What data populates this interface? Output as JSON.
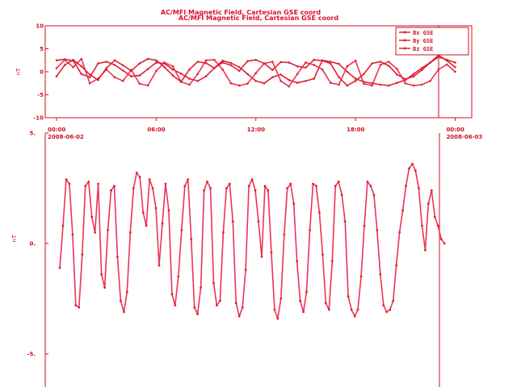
{
  "titles": {
    "overlay": "AC/MFI  Magnetic Field, Cartesian GSE coord",
    "main": "AC/MFI  Magnetic Field, Cartesian GSE coord"
  },
  "colors": {
    "axis": "#cc1122",
    "series": "#dd2233",
    "series_alt": "#ee3355",
    "text": "#cc1122"
  },
  "chart_data": [
    {
      "type": "line",
      "title": "AC/MFI  Magnetic Field, Cartesian GSE coord",
      "ylabel": "nT",
      "ylim": [
        -10,
        10
      ],
      "y_ticks": [
        "10",
        "5",
        "0",
        "-5",
        "-10"
      ],
      "xlim_hours": [
        0,
        25
      ],
      "x_ticks": [
        {
          "hour": 0,
          "label": "00:00",
          "date": "2008-06-02"
        },
        {
          "hour": 6,
          "label": "06:00",
          "date": ""
        },
        {
          "hour": 12,
          "label": "12:00",
          "date": ""
        },
        {
          "hour": 18,
          "label": "18:00",
          "date": ""
        },
        {
          "hour": 24,
          "label": "00:00",
          "date": "2008-06-03"
        }
      ],
      "legend": {
        "placement": "top-right",
        "entries": [
          "Bx GSE",
          "By GSE",
          "Bz GSE"
        ]
      },
      "series": [
        {
          "name": "Bx GSE",
          "x": [
            0.0,
            0.5,
            1.0,
            1.5,
            2.0,
            2.5,
            3.0,
            3.5,
            4.0,
            4.5,
            5.0,
            5.5,
            6.0,
            6.5,
            7.0,
            7.5,
            8.0,
            8.5,
            9.0,
            9.5,
            10.0,
            10.5,
            11.0,
            11.5,
            12.0,
            12.5,
            13.0,
            13.5,
            14.0,
            14.5,
            15.0,
            15.5,
            16.0,
            16.5,
            17.0,
            17.5,
            18.0,
            18.5,
            19.0,
            19.5,
            20.0,
            20.5,
            21.0,
            21.5,
            22.0,
            22.5,
            23.0,
            23.5,
            24.0
          ],
          "values": [
            2.5,
            2.7,
            2.4,
            -0.5,
            -1.2,
            1.8,
            2.2,
            1.5,
            0.3,
            -1.0,
            -0.8,
            0.6,
            2.0,
            1.8,
            0.5,
            -0.4,
            -1.5,
            -2.0,
            -1.0,
            0.8,
            2.4,
            1.9,
            1.0,
            -0.5,
            -2.0,
            -2.5,
            -1.2,
            -0.6,
            -1.8,
            -2.4,
            -2.0,
            -1.5,
            2.5,
            2.2,
            1.7,
            0.0,
            -1.5,
            -2.2,
            -2.5,
            -2.8,
            -3.0,
            -2.4,
            -1.8,
            -0.5,
            0.8,
            2.0,
            3.2,
            2.6,
            2.0
          ]
        },
        {
          "name": "By GSE",
          "x": [
            0.0,
            0.5,
            1.0,
            1.5,
            2.0,
            2.5,
            3.0,
            3.5,
            4.0,
            4.5,
            5.0,
            5.5,
            6.0,
            6.5,
            7.0,
            7.5,
            8.0,
            8.5,
            9.0,
            9.5,
            10.0,
            10.5,
            11.0,
            11.5,
            12.0,
            12.5,
            13.0,
            13.5,
            14.0,
            14.5,
            15.0,
            15.5,
            16.0,
            16.5,
            17.0,
            17.5,
            18.0,
            18.5,
            19.0,
            19.5,
            20.0,
            20.5,
            21.0,
            21.5,
            22.0,
            22.5,
            23.0,
            23.5,
            24.0
          ],
          "values": [
            0.8,
            2.6,
            1.0,
            2.8,
            -2.5,
            -1.5,
            0.5,
            -1.2,
            -2.0,
            0.4,
            -2.6,
            -3.0,
            0.2,
            2.0,
            1.2,
            -2.2,
            -2.8,
            -0.5,
            2.5,
            2.6,
            0.5,
            -2.5,
            -3.0,
            -2.6,
            -0.3,
            1.8,
            2.2,
            -2.0,
            -3.2,
            -0.5,
            2.0,
            1.5,
            0.5,
            -2.4,
            -2.8,
            1.2,
            2.4,
            -2.6,
            -3.0,
            1.5,
            2.2,
            0.6,
            -2.5,
            -3.0,
            -2.8,
            -2.0,
            0.5,
            1.6,
            0.0
          ]
        },
        {
          "name": "Bz GSE",
          "x": [
            0.0,
            0.5,
            1.0,
            1.5,
            2.0,
            2.5,
            3.0,
            3.5,
            4.0,
            4.5,
            5.0,
            5.5,
            6.0,
            6.5,
            7.0,
            7.5,
            8.0,
            8.5,
            9.0,
            9.5,
            10.0,
            10.5,
            11.0,
            11.5,
            12.0,
            12.5,
            13.0,
            13.5,
            14.0,
            14.5,
            15.0,
            15.5,
            16.0,
            16.5,
            17.0,
            17.5,
            18.0,
            18.5,
            19.0,
            19.5,
            20.0,
            20.5,
            21.0,
            21.5,
            22.0,
            22.5,
            23.0,
            23.5,
            24.0
          ],
          "values": [
            -1.0,
            1.5,
            2.6,
            1.2,
            -0.6,
            -1.8,
            0.8,
            2.5,
            1.4,
            0.2,
            1.8,
            2.8,
            2.5,
            1.0,
            -0.8,
            -2.2,
            0.5,
            2.2,
            1.9,
            0.8,
            2.0,
            1.4,
            0.2,
            2.3,
            2.6,
            1.8,
            0.4,
            2.1,
            2.0,
            1.2,
            0.9,
            2.6,
            2.4,
            1.8,
            -1.2,
            -3.0,
            -2.0,
            -0.5,
            1.8,
            2.2,
            1.3,
            -0.6,
            -1.6,
            -1.0,
            0.4,
            2.0,
            3.6,
            2.4,
            1.0
          ]
        }
      ]
    },
    {
      "type": "line",
      "title": "",
      "ylabel": "nT",
      "ylim": [
        -6.5,
        5
      ],
      "y_ticks": [
        "5.",
        "0.",
        "-5."
      ],
      "xlim_hours": [
        0,
        25
      ],
      "series": [
        {
          "name": "",
          "x": [
            0.0,
            0.2,
            0.4,
            0.6,
            0.8,
            1.0,
            1.2,
            1.4,
            1.6,
            1.8,
            2.0,
            2.2,
            2.4,
            2.6,
            2.8,
            3.0,
            3.2,
            3.4,
            3.6,
            3.8,
            4.0,
            4.2,
            4.4,
            4.6,
            4.8,
            5.0,
            5.2,
            5.4,
            5.6,
            5.8,
            6.0,
            6.2,
            6.4,
            6.6,
            6.8,
            7.0,
            7.2,
            7.4,
            7.6,
            7.8,
            8.0,
            8.2,
            8.4,
            8.6,
            8.8,
            9.0,
            9.2,
            9.4,
            9.6,
            9.8,
            10.0,
            10.2,
            10.4,
            10.6,
            10.8,
            11.0,
            11.2,
            11.4,
            11.6,
            11.8,
            12.0,
            12.2,
            12.4,
            12.6,
            12.8,
            13.0,
            13.2,
            13.4,
            13.6,
            13.8,
            14.0,
            14.2,
            14.4,
            14.6,
            14.8,
            15.0,
            15.2,
            15.4,
            15.6,
            15.8,
            16.0,
            16.2,
            16.4,
            16.6,
            16.8,
            17.0,
            17.2,
            17.4,
            17.6,
            17.8,
            18.0,
            18.2,
            18.4,
            18.6,
            18.8,
            19.0,
            19.2,
            19.4,
            19.6,
            19.8,
            20.0,
            20.2,
            20.4,
            20.6,
            20.8,
            21.0,
            21.2,
            21.4,
            21.6,
            21.8,
            22.0,
            22.2,
            22.4,
            22.6,
            22.8,
            23.0,
            23.2,
            23.4,
            23.6,
            23.8,
            24.0
          ],
          "values": [
            -1.1,
            0.8,
            2.9,
            2.7,
            0.4,
            -2.8,
            -2.9,
            -0.5,
            2.6,
            2.8,
            1.2,
            0.5,
            2.7,
            -1.4,
            -2.0,
            0.6,
            2.4,
            2.6,
            -0.6,
            -2.6,
            -3.1,
            -2.2,
            0.5,
            2.5,
            3.2,
            3.0,
            1.4,
            0.8,
            2.9,
            2.5,
            1.6,
            -1.0,
            0.9,
            2.7,
            1.5,
            -2.3,
            -2.8,
            -1.5,
            0.6,
            2.6,
            2.9,
            0.2,
            -2.9,
            -3.2,
            -2.0,
            2.4,
            2.8,
            2.5,
            -1.8,
            -2.8,
            -2.6,
            0.5,
            2.5,
            2.7,
            1.0,
            -2.7,
            -3.3,
            -2.9,
            -1.2,
            2.6,
            2.9,
            2.4,
            1.0,
            -0.6,
            2.6,
            2.4,
            -0.4,
            -3.0,
            -3.4,
            -2.5,
            0.4,
            2.5,
            2.7,
            1.8,
            -0.8,
            -2.6,
            -3.1,
            -2.2,
            0.6,
            2.7,
            2.6,
            1.4,
            -0.5,
            -2.7,
            -3.0,
            -0.8,
            2.6,
            2.8,
            2.2,
            1.0,
            -2.4,
            -3.0,
            -3.3,
            -3.0,
            -1.5,
            0.8,
            2.8,
            2.6,
            2.2,
            0.6,
            -1.4,
            -2.8,
            -3.1,
            -3.0,
            -2.6,
            -1.0,
            0.5,
            1.5,
            2.6,
            3.4,
            3.6,
            3.3,
            2.5,
            0.8,
            -0.3,
            1.8,
            2.4,
            1.2,
            0.8,
            0.2,
            0.0
          ]
        }
      ]
    }
  ]
}
